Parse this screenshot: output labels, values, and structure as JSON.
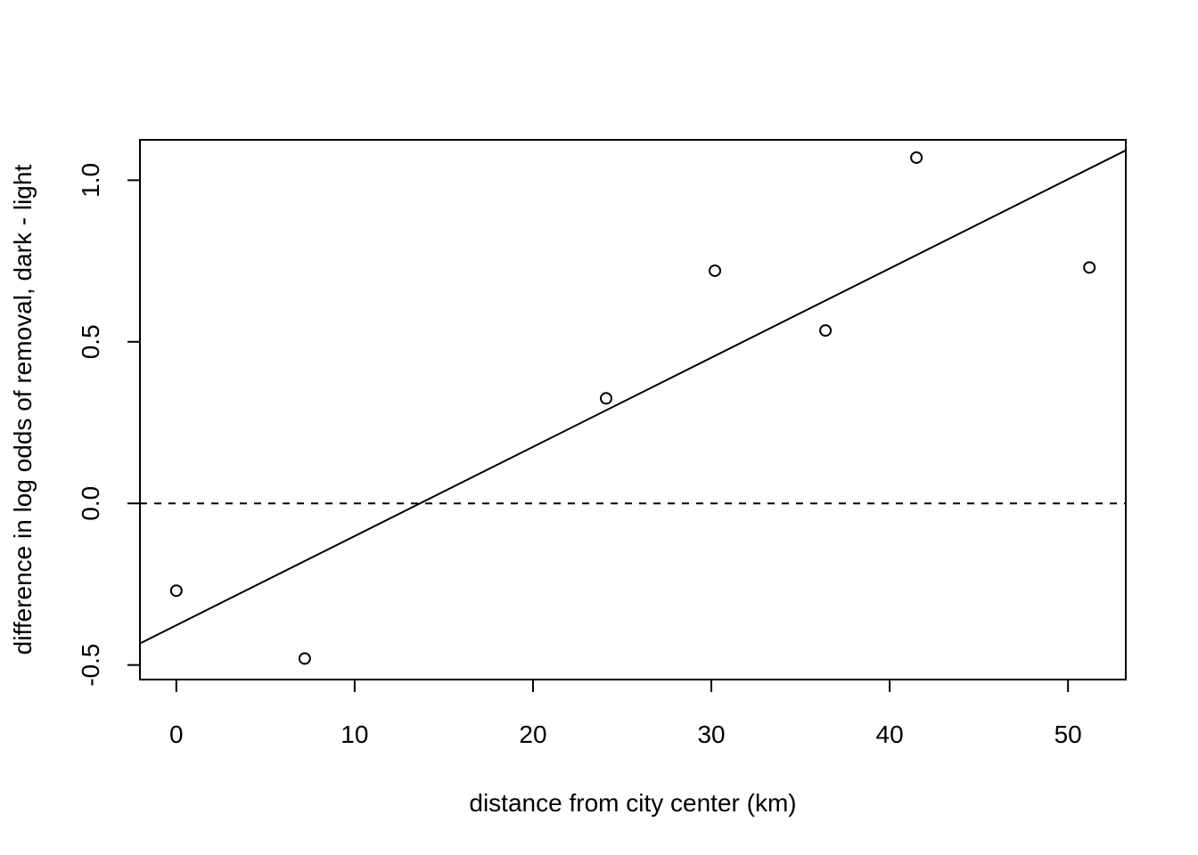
{
  "chart_data": {
    "type": "scatter",
    "title": "",
    "xlabel": "distance from city center (km)",
    "ylabel": "difference in log odds of removal, dark - light",
    "xlim": [
      -2.04,
      53.24
    ],
    "ylim": [
      -0.545,
      1.125
    ],
    "xticks": [
      0,
      10,
      20,
      30,
      40,
      50
    ],
    "xtick_labels": [
      "0",
      "10",
      "20",
      "30",
      "40",
      "50"
    ],
    "yticks": [
      -0.5,
      0.0,
      0.5,
      1.0
    ],
    "ytick_labels": [
      "-0.5",
      "0.0",
      "0.5",
      "1.0"
    ],
    "grid": false,
    "points": [
      {
        "x": 0.0,
        "y": -0.27
      },
      {
        "x": 7.2,
        "y": -0.48
      },
      {
        "x": 24.1,
        "y": 0.325
      },
      {
        "x": 30.2,
        "y": 0.72
      },
      {
        "x": 36.4,
        "y": 0.535
      },
      {
        "x": 41.5,
        "y": 1.07
      },
      {
        "x": 51.2,
        "y": 0.73
      }
    ],
    "fit_line": {
      "intercept": -0.377,
      "slope": 0.0276
    },
    "reference_line": {
      "y": 0.0,
      "style": "dashed"
    }
  }
}
